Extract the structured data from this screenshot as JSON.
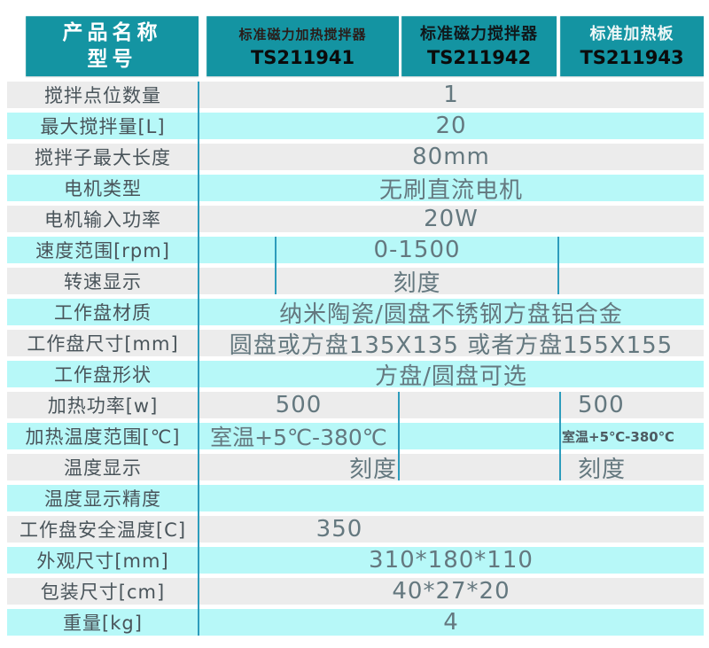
{
  "theme": {
    "header_bg": "#1494a2",
    "header_text": "#ffffff",
    "stripe_cyan": "#b7f8f8",
    "stripe_gray": "#ececec",
    "divider_line": "#2d9cbc",
    "label_text": "#49545a",
    "value_text": "#64787f"
  },
  "table": {
    "corner": {
      "line1": "产品名称",
      "line2": "型号"
    },
    "products": [
      {
        "name": "标准磁力加热搅拌器",
        "model": "TS211941",
        "name_color": "#2a1d1a"
      },
      {
        "name": "标准磁力搅拌器",
        "model": "TS211942",
        "name_color": "#10181b"
      },
      {
        "name": "标准加热板",
        "model": "TS211943",
        "name_color": "#eef7f7"
      }
    ],
    "rows": [
      {
        "label": "搅拌点位数量",
        "cells": [
          {
            "span": "all",
            "text": "1"
          }
        ]
      },
      {
        "label": "最大搅拌量[L]",
        "cells": [
          {
            "span": "all",
            "text": "20"
          }
        ]
      },
      {
        "label": "搅拌子最大长度",
        "cells": [
          {
            "span": "all",
            "text": "80mm"
          }
        ]
      },
      {
        "label": "电机类型",
        "cells": [
          {
            "span": "all",
            "text": "无刷直流电机"
          }
        ]
      },
      {
        "label": "电机输入功率",
        "cells": [
          {
            "span": "all",
            "text": "20W"
          }
        ]
      },
      {
        "label": "速度范围[rpm]",
        "cells": [
          {
            "span": "stub",
            "text": ""
          },
          {
            "span": "mid",
            "text": "0-1500"
          },
          {
            "span": "p3",
            "text": ""
          }
        ]
      },
      {
        "label": "转速显示",
        "cells": [
          {
            "span": "stub",
            "text": ""
          },
          {
            "span": "mid",
            "text": "刻度"
          },
          {
            "span": "p3",
            "text": ""
          }
        ]
      },
      {
        "label": "工作盘材质",
        "cells": [
          {
            "span": "all",
            "text": "纳米陶瓷/圆盘不锈钢方盘铝合金"
          }
        ]
      },
      {
        "label": "工作盘尺寸[mm]",
        "cells": [
          {
            "span": "all",
            "text": "圆盘或方盘135X135  或者方盘155X155"
          }
        ]
      },
      {
        "label": "工作盘形状",
        "cells": [
          {
            "span": "all",
            "text": "方盘/圆盘可选"
          }
        ]
      },
      {
        "label": "加热功率[w]",
        "cells": [
          {
            "span": "p1",
            "text": "500"
          },
          {
            "span": "p2",
            "text": ""
          },
          {
            "span": "p3",
            "text": "500"
          }
        ]
      },
      {
        "label": "加热温度范围[℃]",
        "cells": [
          {
            "span": "p1",
            "text": "室温+5℃-380℃"
          },
          {
            "span": "p2",
            "text": ""
          },
          {
            "span": "p3",
            "text": "室温+5℃-380℃"
          }
        ]
      },
      {
        "label": "温度显示",
        "cells": [
          {
            "span": "p1",
            "text": "刻度"
          },
          {
            "span": "p2",
            "text": ""
          },
          {
            "span": "p3",
            "text": "刻度"
          }
        ]
      },
      {
        "label": "温度显示精度",
        "cells": [
          {
            "span": "all",
            "text": ""
          }
        ]
      },
      {
        "label": "工作盘安全温度[C]",
        "cells": [
          {
            "span": "w350",
            "text": "350"
          }
        ]
      },
      {
        "label": "外观尺寸[mm]",
        "cells": [
          {
            "span": "all",
            "text": "310*180*110"
          }
        ]
      },
      {
        "label": "包装尺寸[cm]",
        "cells": [
          {
            "span": "all",
            "text": "40*27*20"
          }
        ]
      },
      {
        "label": "重量[kg]",
        "cells": [
          {
            "span": "all",
            "text": "4"
          }
        ]
      }
    ]
  }
}
